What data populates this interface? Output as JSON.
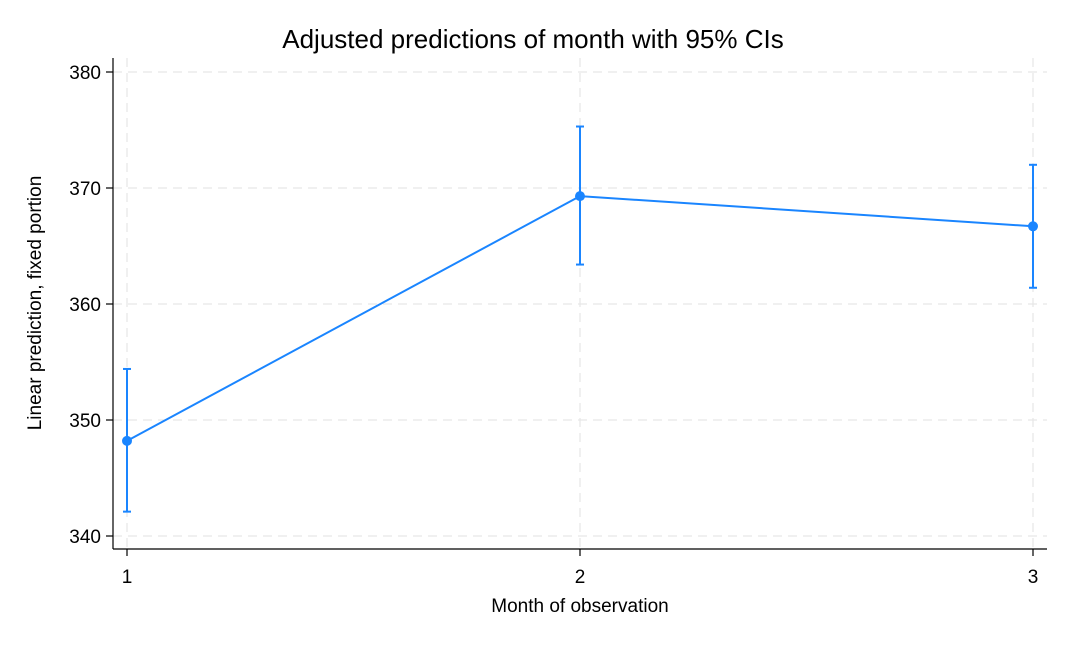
{
  "chart_data": {
    "type": "line",
    "title": "Adjusted predictions of month with 95% CIs",
    "xlabel": "Month of observation",
    "ylabel": "Linear prediction, fixed portion",
    "x": [
      1,
      2,
      3
    ],
    "x_ticks": [
      "1",
      "2",
      "3"
    ],
    "y_ticks": [
      "340",
      "350",
      "360",
      "370",
      "380"
    ],
    "xlim": [
      1,
      3
    ],
    "ylim": [
      340,
      380
    ],
    "grid": true,
    "series": [
      {
        "values": [
          348.2,
          369.3,
          366.7
        ],
        "ci_lower": [
          342.1,
          363.4,
          361.4
        ],
        "ci_upper": [
          354.4,
          375.3,
          372.0
        ],
        "color": "#1a85ff"
      }
    ]
  }
}
